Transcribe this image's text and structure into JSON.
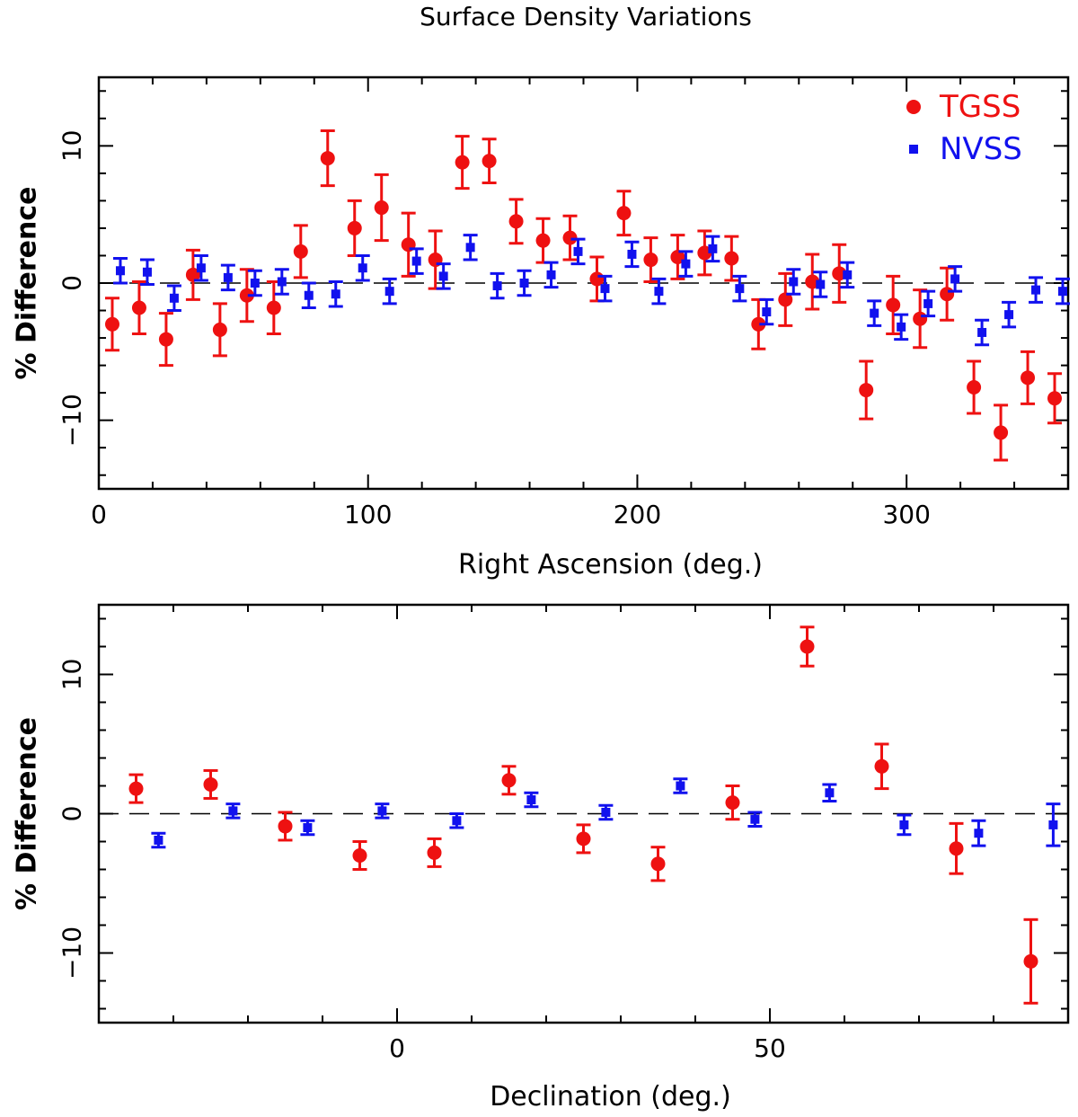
{
  "figure_title": "Surface Density Variations",
  "chart_data": [
    {
      "type": "scatter",
      "title": "Surface Density Variations",
      "xlabel": "Right Ascension (deg.)",
      "ylabel": "% Difference",
      "xlim": [
        0,
        360
      ],
      "ylim": [
        -15,
        15
      ],
      "xticks": [
        0,
        100,
        200,
        300
      ],
      "yticks": [
        -10,
        0,
        10
      ],
      "reference_line": 0,
      "legend": "top-right",
      "series": [
        {
          "name": "TGSS",
          "color": "#ee1111",
          "marker": "circle",
          "points": [
            {
              "x": 5,
              "y": -3.0,
              "err": 1.9
            },
            {
              "x": 15,
              "y": -1.8,
              "err": 1.9
            },
            {
              "x": 25,
              "y": -4.1,
              "err": 1.9
            },
            {
              "x": 35,
              "y": 0.6,
              "err": 1.8
            },
            {
              "x": 45,
              "y": -3.4,
              "err": 1.9
            },
            {
              "x": 55,
              "y": -0.9,
              "err": 1.9
            },
            {
              "x": 65,
              "y": -1.8,
              "err": 1.9
            },
            {
              "x": 75,
              "y": 2.3,
              "err": 1.9
            },
            {
              "x": 85,
              "y": 9.1,
              "err": 2.0
            },
            {
              "x": 95,
              "y": 4.0,
              "err": 2.0
            },
            {
              "x": 105,
              "y": 5.5,
              "err": 2.4
            },
            {
              "x": 115,
              "y": 2.8,
              "err": 2.3
            },
            {
              "x": 125,
              "y": 1.7,
              "err": 2.1
            },
            {
              "x": 135,
              "y": 8.8,
              "err": 1.9
            },
            {
              "x": 145,
              "y": 8.9,
              "err": 1.6
            },
            {
              "x": 155,
              "y": 4.5,
              "err": 1.6
            },
            {
              "x": 165,
              "y": 3.1,
              "err": 1.6
            },
            {
              "x": 175,
              "y": 3.3,
              "err": 1.6
            },
            {
              "x": 185,
              "y": 0.3,
              "err": 1.6
            },
            {
              "x": 195,
              "y": 5.1,
              "err": 1.6
            },
            {
              "x": 205,
              "y": 1.7,
              "err": 1.6
            },
            {
              "x": 215,
              "y": 1.9,
              "err": 1.6
            },
            {
              "x": 225,
              "y": 2.2,
              "err": 1.6
            },
            {
              "x": 235,
              "y": 1.8,
              "err": 1.6
            },
            {
              "x": 245,
              "y": -3.0,
              "err": 1.8
            },
            {
              "x": 255,
              "y": -1.2,
              "err": 1.9
            },
            {
              "x": 265,
              "y": 0.1,
              "err": 2.0
            },
            {
              "x": 275,
              "y": 0.7,
              "err": 2.1
            },
            {
              "x": 285,
              "y": -7.8,
              "err": 2.1
            },
            {
              "x": 295,
              "y": -1.6,
              "err": 2.1
            },
            {
              "x": 305,
              "y": -2.6,
              "err": 2.1
            },
            {
              "x": 315,
              "y": -0.8,
              "err": 1.9
            },
            {
              "x": 325,
              "y": -7.6,
              "err": 1.9
            },
            {
              "x": 335,
              "y": -10.9,
              "err": 2.0
            },
            {
              "x": 345,
              "y": -6.9,
              "err": 1.9
            },
            {
              "x": 355,
              "y": -8.4,
              "err": 1.8
            }
          ]
        },
        {
          "name": "NVSS",
          "color": "#1111ee",
          "marker": "square",
          "points": [
            {
              "x": 8,
              "y": 0.9,
              "err": 0.9
            },
            {
              "x": 18,
              "y": 0.8,
              "err": 0.9
            },
            {
              "x": 28,
              "y": -1.1,
              "err": 0.9
            },
            {
              "x": 38,
              "y": 1.1,
              "err": 0.9
            },
            {
              "x": 48,
              "y": 0.4,
              "err": 0.9
            },
            {
              "x": 58,
              "y": 0.0,
              "err": 0.9
            },
            {
              "x": 68,
              "y": 0.1,
              "err": 0.9
            },
            {
              "x": 78,
              "y": -0.9,
              "err": 0.9
            },
            {
              "x": 88,
              "y": -0.8,
              "err": 0.9
            },
            {
              "x": 98,
              "y": 1.1,
              "err": 0.9
            },
            {
              "x": 108,
              "y": -0.6,
              "err": 0.9
            },
            {
              "x": 118,
              "y": 1.6,
              "err": 0.9
            },
            {
              "x": 128,
              "y": 0.5,
              "err": 0.9
            },
            {
              "x": 138,
              "y": 2.6,
              "err": 0.9
            },
            {
              "x": 148,
              "y": -0.2,
              "err": 0.9
            },
            {
              "x": 158,
              "y": 0.0,
              "err": 0.9
            },
            {
              "x": 168,
              "y": 0.6,
              "err": 0.9
            },
            {
              "x": 178,
              "y": 2.3,
              "err": 0.9
            },
            {
              "x": 188,
              "y": -0.4,
              "err": 0.9
            },
            {
              "x": 198,
              "y": 2.1,
              "err": 0.9
            },
            {
              "x": 208,
              "y": -0.6,
              "err": 0.9
            },
            {
              "x": 218,
              "y": 1.4,
              "err": 0.9
            },
            {
              "x": 228,
              "y": 2.5,
              "err": 0.9
            },
            {
              "x": 238,
              "y": -0.4,
              "err": 0.9
            },
            {
              "x": 248,
              "y": -2.1,
              "err": 0.9
            },
            {
              "x": 258,
              "y": 0.1,
              "err": 0.9
            },
            {
              "x": 268,
              "y": -0.1,
              "err": 0.9
            },
            {
              "x": 278,
              "y": 0.6,
              "err": 0.9
            },
            {
              "x": 288,
              "y": -2.2,
              "err": 0.9
            },
            {
              "x": 298,
              "y": -3.2,
              "err": 0.9
            },
            {
              "x": 308,
              "y": -1.5,
              "err": 0.9
            },
            {
              "x": 318,
              "y": 0.3,
              "err": 0.9
            },
            {
              "x": 328,
              "y": -3.6,
              "err": 0.9
            },
            {
              "x": 338,
              "y": -2.3,
              "err": 0.9
            },
            {
              "x": 348,
              "y": -0.5,
              "err": 0.9
            },
            {
              "x": 358,
              "y": -0.6,
              "err": 0.9
            }
          ]
        }
      ]
    },
    {
      "type": "scatter",
      "xlabel": "Declination (deg.)",
      "ylabel": "% Difference",
      "xlim": [
        -40,
        90
      ],
      "ylim": [
        -15,
        15
      ],
      "xticks": [
        0,
        50
      ],
      "yticks": [
        -10,
        0,
        10
      ],
      "reference_line": 0,
      "series": [
        {
          "name": "TGSS",
          "color": "#ee1111",
          "marker": "circle",
          "points": [
            {
              "x": -35,
              "y": 1.8,
              "err": 1.0
            },
            {
              "x": -25,
              "y": 2.1,
              "err": 1.0
            },
            {
              "x": -15,
              "y": -0.9,
              "err": 1.0
            },
            {
              "x": -5,
              "y": -3.0,
              "err": 1.0
            },
            {
              "x": 5,
              "y": -2.8,
              "err": 1.0
            },
            {
              "x": 15,
              "y": 2.4,
              "err": 1.0
            },
            {
              "x": 25,
              "y": -1.8,
              "err": 1.0
            },
            {
              "x": 35,
              "y": -3.6,
              "err": 1.2
            },
            {
              "x": 45,
              "y": 0.8,
              "err": 1.2
            },
            {
              "x": 55,
              "y": 12.0,
              "err": 1.4
            },
            {
              "x": 65,
              "y": 3.4,
              "err": 1.6
            },
            {
              "x": 75,
              "y": -2.5,
              "err": 1.8
            },
            {
              "x": 85,
              "y": -10.6,
              "err": 3.0
            }
          ]
        },
        {
          "name": "NVSS",
          "color": "#1111ee",
          "marker": "square",
          "points": [
            {
              "x": -32,
              "y": -1.9,
              "err": 0.5
            },
            {
              "x": -22,
              "y": 0.2,
              "err": 0.5
            },
            {
              "x": -12,
              "y": -1.0,
              "err": 0.5
            },
            {
              "x": -2,
              "y": 0.2,
              "err": 0.5
            },
            {
              "x": 8,
              "y": -0.5,
              "err": 0.5
            },
            {
              "x": 18,
              "y": 1.0,
              "err": 0.5
            },
            {
              "x": 28,
              "y": 0.1,
              "err": 0.5
            },
            {
              "x": 38,
              "y": 2.0,
              "err": 0.5
            },
            {
              "x": 48,
              "y": -0.4,
              "err": 0.5
            },
            {
              "x": 58,
              "y": 1.5,
              "err": 0.6
            },
            {
              "x": 68,
              "y": -0.8,
              "err": 0.7
            },
            {
              "x": 78,
              "y": -1.4,
              "err": 0.9
            },
            {
              "x": 88,
              "y": -0.8,
              "err": 1.5
            }
          ]
        }
      ]
    }
  ]
}
